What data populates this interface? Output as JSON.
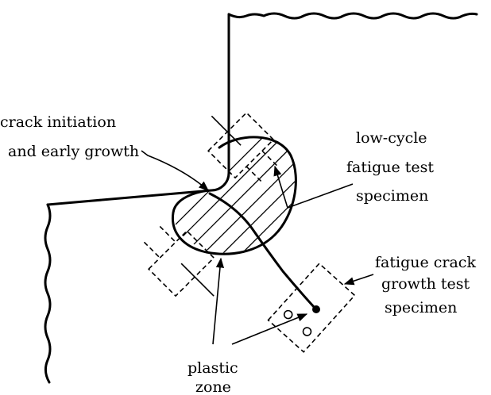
{
  "labels": {
    "crack_initiation_line1": "crack initiation",
    "crack_initiation_line2": "and early growth",
    "low_cycle_line1": "low-cycle",
    "low_cycle_line2": "fatigue test",
    "low_cycle_line3": "specimen",
    "fatigue_crack_line1": "fatigue crack",
    "fatigue_crack_line2": "growth test",
    "fatigue_crack_line3": "specimen",
    "plastic_line1": "plastic",
    "plastic_line2": "zone"
  },
  "colors": {
    "ink": "#000000",
    "background": "#ffffff"
  }
}
